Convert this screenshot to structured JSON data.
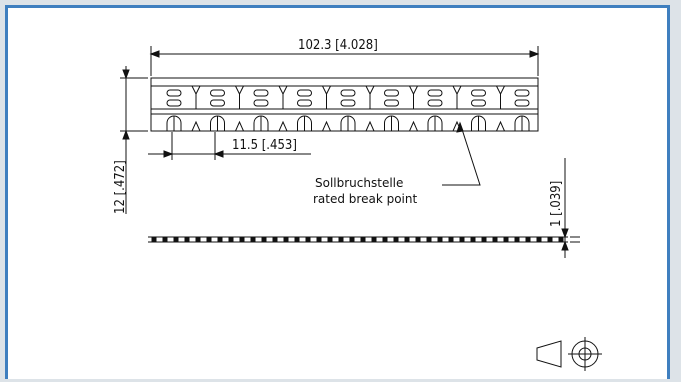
{
  "drawing": {
    "overall_length": "102.3 [4.028]",
    "pitch": "11.5 [.453]",
    "height": "12 [.472]",
    "thickness": "1 [.039]",
    "break_point_de": "Sollbruchstelle",
    "break_point_en": "rated break point",
    "projection_symbol": "first-angle-projection-icon"
  },
  "colors": {
    "frame": "#3f7fbf",
    "line": "#111111",
    "background": "#ffffff"
  }
}
